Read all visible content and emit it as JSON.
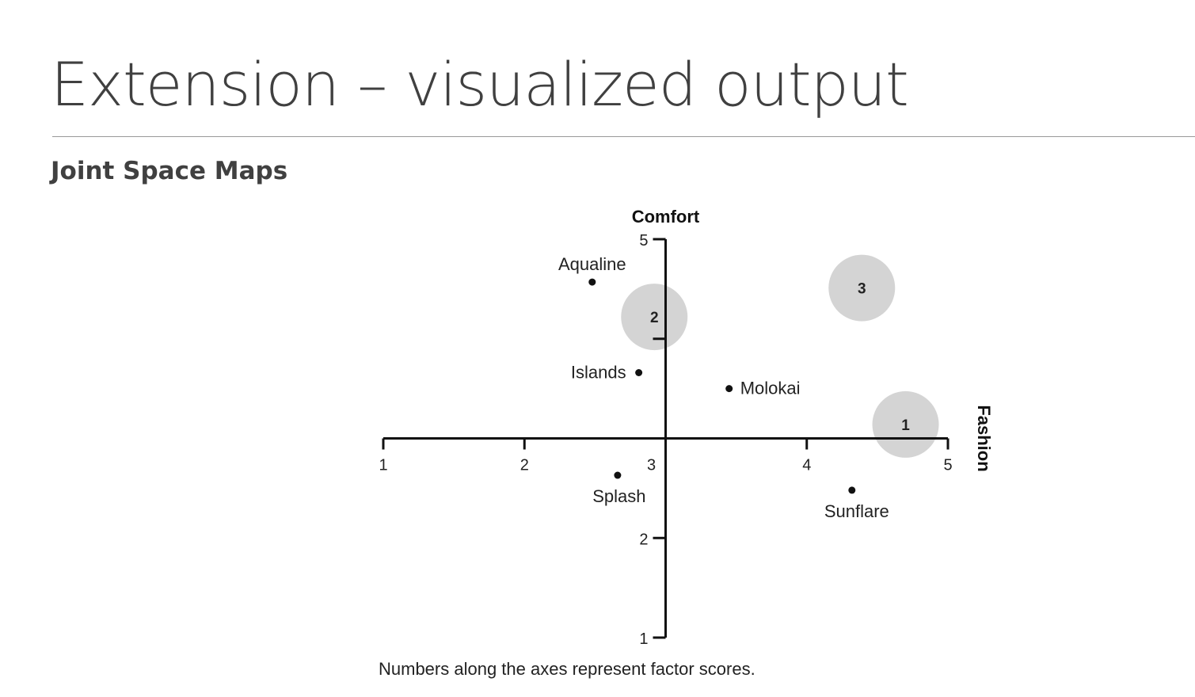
{
  "slide": {
    "title": "Extension – visualized output",
    "subtitle": "Joint Space Maps"
  },
  "chart_data": {
    "type": "scatter",
    "x_axis": {
      "label": "Fashion",
      "ticks": [
        1,
        2,
        3,
        4,
        5
      ],
      "range": [
        1,
        5
      ]
    },
    "y_axis": {
      "label": "Comfort",
      "ticks": [
        1,
        2,
        5
      ],
      "range": [
        1,
        5
      ]
    },
    "origin": {
      "x": 3,
      "y": 3
    },
    "points": [
      {
        "name": "Aqualine",
        "x": 2.48,
        "y": 4.57,
        "label_side": "above"
      },
      {
        "name": "Islands",
        "x": 2.81,
        "y": 3.66,
        "label_side": "left"
      },
      {
        "name": "Molokai",
        "x": 3.45,
        "y": 3.5,
        "label_side": "right"
      },
      {
        "name": "Splash",
        "x": 2.66,
        "y": 2.63,
        "label_side": "below"
      },
      {
        "name": "Sunflare",
        "x": 4.32,
        "y": 2.48,
        "label_side": "below"
      }
    ],
    "segments": [
      {
        "label": "1",
        "x": 4.7,
        "y": 3.14
      },
      {
        "label": "2",
        "x": 2.92,
        "y": 4.22
      },
      {
        "label": "3",
        "x": 4.39,
        "y": 4.51
      }
    ],
    "footnote": "Numbers along the axes represent factor scores.",
    "colors": {
      "axis": "#111111",
      "segment": "#d4d4d4",
      "text": "#222222"
    }
  }
}
